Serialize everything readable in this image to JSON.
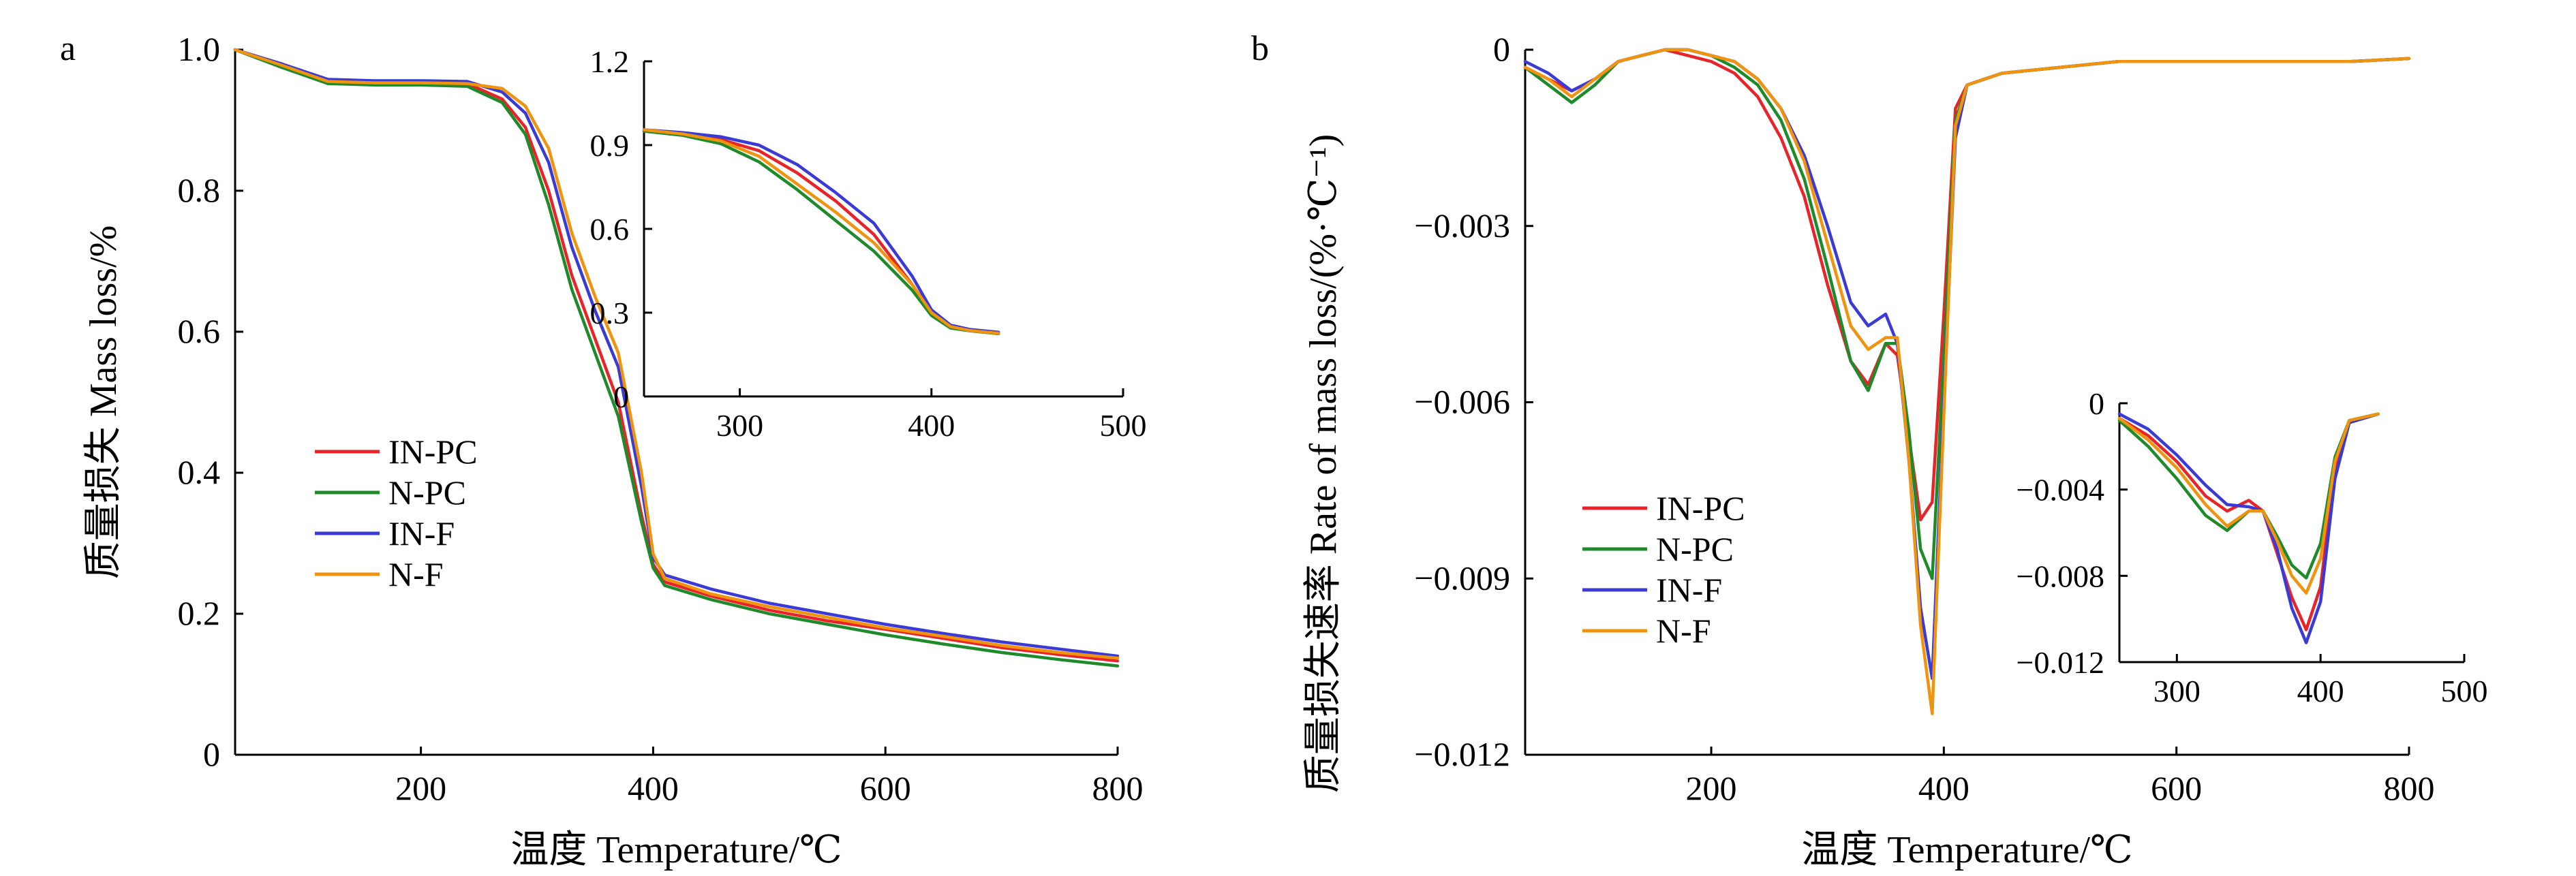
{
  "colors": {
    "IN-PC": "#e8242a",
    "N-PC": "#1f8a2a",
    "IN-F": "#3a3ad6",
    "N-F": "#f0930f"
  },
  "chart_data": [
    {
      "type": "line",
      "panel_label": "a",
      "xlabel": "温度 Temperature/℃",
      "ylabel": "质量损失 Mass loss/%",
      "xlim": [
        40,
        800
      ],
      "ylim": [
        0,
        1.0
      ],
      "xticks": [
        "200",
        "400",
        "600",
        "800"
      ],
      "yticks": [
        "0",
        "0.2",
        "0.4",
        "0.6",
        "0.8",
        "1.0"
      ],
      "legend": [
        "IN-PC",
        "N-PC",
        "IN-F",
        "N-F"
      ],
      "legend_position": "center-left",
      "series": [
        {
          "name": "IN-PC",
          "x": [
            40,
            80,
            120,
            160,
            200,
            240,
            270,
            290,
            310,
            330,
            350,
            370,
            390,
            400,
            410,
            450,
            500,
            550,
            600,
            650,
            700,
            750,
            800
          ],
          "y": [
            1.0,
            0.98,
            0.957,
            0.955,
            0.955,
            0.952,
            0.93,
            0.89,
            0.8,
            0.68,
            0.59,
            0.5,
            0.34,
            0.27,
            0.245,
            0.225,
            0.205,
            0.19,
            0.178,
            0.165,
            0.152,
            0.142,
            0.133
          ]
        },
        {
          "name": "N-PC",
          "x": [
            40,
            80,
            120,
            160,
            200,
            240,
            270,
            290,
            310,
            330,
            350,
            370,
            390,
            400,
            410,
            450,
            500,
            550,
            600,
            650,
            700,
            750,
            800
          ],
          "y": [
            1.0,
            0.975,
            0.952,
            0.95,
            0.95,
            0.948,
            0.925,
            0.88,
            0.78,
            0.66,
            0.57,
            0.48,
            0.33,
            0.265,
            0.24,
            0.22,
            0.2,
            0.185,
            0.17,
            0.157,
            0.145,
            0.135,
            0.126
          ]
        },
        {
          "name": "IN-F",
          "x": [
            40,
            80,
            120,
            160,
            200,
            240,
            270,
            290,
            310,
            330,
            350,
            370,
            390,
            400,
            410,
            450,
            500,
            550,
            600,
            650,
            700,
            750,
            800
          ],
          "y": [
            1.0,
            0.98,
            0.958,
            0.956,
            0.956,
            0.955,
            0.94,
            0.91,
            0.84,
            0.72,
            0.63,
            0.55,
            0.38,
            0.28,
            0.255,
            0.235,
            0.215,
            0.2,
            0.185,
            0.172,
            0.16,
            0.15,
            0.14
          ]
        },
        {
          "name": "N-F",
          "x": [
            40,
            80,
            120,
            160,
            200,
            240,
            270,
            290,
            310,
            330,
            350,
            370,
            390,
            400,
            410,
            450,
            500,
            550,
            600,
            650,
            700,
            750,
            800
          ],
          "y": [
            1.0,
            0.978,
            0.955,
            0.953,
            0.953,
            0.952,
            0.945,
            0.92,
            0.86,
            0.74,
            0.65,
            0.57,
            0.4,
            0.285,
            0.25,
            0.228,
            0.21,
            0.195,
            0.18,
            0.168,
            0.155,
            0.145,
            0.137
          ]
        }
      ]
    },
    {
      "type": "line",
      "role": "inset",
      "xlim": [
        250,
        500
      ],
      "ylim": [
        0,
        1.2
      ],
      "xticks": [
        "300",
        "400",
        "500"
      ],
      "yticks": [
        "0",
        "0.3",
        "0.6",
        "0.9",
        "1.2"
      ],
      "series": [
        {
          "name": "IN-PC",
          "x": [
            250,
            270,
            290,
            310,
            330,
            350,
            370,
            390,
            400,
            410,
            420,
            435
          ],
          "y": [
            0.95,
            0.94,
            0.92,
            0.88,
            0.8,
            0.7,
            0.58,
            0.4,
            0.3,
            0.25,
            0.235,
            0.225
          ]
        },
        {
          "name": "N-PC",
          "x": [
            250,
            270,
            290,
            310,
            330,
            350,
            370,
            390,
            400,
            410,
            420,
            435
          ],
          "y": [
            0.95,
            0.935,
            0.905,
            0.84,
            0.74,
            0.63,
            0.52,
            0.38,
            0.29,
            0.245,
            0.235,
            0.225
          ]
        },
        {
          "name": "IN-F",
          "x": [
            250,
            270,
            290,
            310,
            330,
            350,
            370,
            390,
            400,
            410,
            420,
            435
          ],
          "y": [
            0.955,
            0.945,
            0.93,
            0.9,
            0.83,
            0.73,
            0.62,
            0.43,
            0.31,
            0.255,
            0.24,
            0.23
          ]
        },
        {
          "name": "N-F",
          "x": [
            250,
            270,
            290,
            310,
            330,
            350,
            370,
            390,
            400,
            410,
            420,
            435
          ],
          "y": [
            0.955,
            0.94,
            0.915,
            0.86,
            0.76,
            0.66,
            0.55,
            0.4,
            0.3,
            0.25,
            0.236,
            0.226
          ]
        }
      ]
    },
    {
      "type": "line",
      "panel_label": "b",
      "xlabel": "温度 Temperature/℃",
      "ylabel": "质量损失速率 Rate of mass loss/(%·℃⁻¹)",
      "xlim": [
        40,
        800
      ],
      "ylim": [
        -0.012,
        0
      ],
      "xticks": [
        "200",
        "400",
        "600",
        "800"
      ],
      "yticks": [
        "0",
        "−0.003",
        "−0.006",
        "−0.009",
        "−0.012"
      ],
      "legend": [
        "IN-PC",
        "N-PC",
        "IN-F",
        "N-F"
      ],
      "legend_position": "bottom-left",
      "series": [
        {
          "name": "IN-PC",
          "x": [
            40,
            60,
            80,
            100,
            120,
            140,
            160,
            180,
            200,
            220,
            240,
            260,
            280,
            300,
            320,
            335,
            350,
            360,
            370,
            380,
            390,
            400,
            410,
            420,
            450,
            500,
            550,
            600,
            650,
            700,
            750,
            800
          ],
          "y": [
            -0.0003,
            -0.0005,
            -0.0007,
            -0.0005,
            -0.0002,
            -0.0001,
            0,
            -0.0001,
            -0.0002,
            -0.0004,
            -0.0008,
            -0.0015,
            -0.0025,
            -0.004,
            -0.0053,
            -0.0057,
            -0.005,
            -0.0052,
            -0.0066,
            -0.008,
            -0.0077,
            -0.0045,
            -0.001,
            -0.0006,
            -0.0004,
            -0.0003,
            -0.0002,
            -0.0002,
            -0.0002,
            -0.0002,
            -0.0002,
            -0.00015
          ]
        },
        {
          "name": "N-PC",
          "x": [
            40,
            60,
            80,
            100,
            120,
            140,
            160,
            180,
            200,
            220,
            240,
            260,
            280,
            300,
            320,
            335,
            350,
            360,
            370,
            380,
            390,
            400,
            410,
            420,
            450,
            500,
            550,
            600,
            650,
            700,
            750,
            800
          ],
          "y": [
            -0.0003,
            -0.0006,
            -0.0009,
            -0.0006,
            -0.0002,
            -0.0001,
            0,
            0,
            -0.0001,
            -0.0003,
            -0.0006,
            -0.0012,
            -0.0022,
            -0.0037,
            -0.0053,
            -0.0058,
            -0.005,
            -0.005,
            -0.0065,
            -0.0085,
            -0.009,
            -0.0052,
            -0.0012,
            -0.0006,
            -0.0004,
            -0.0003,
            -0.0002,
            -0.0002,
            -0.0002,
            -0.0002,
            -0.0002,
            -0.00015
          ]
        },
        {
          "name": "IN-F",
          "x": [
            40,
            60,
            80,
            100,
            120,
            140,
            160,
            180,
            200,
            220,
            240,
            260,
            280,
            300,
            320,
            335,
            350,
            360,
            370,
            380,
            390,
            400,
            410,
            420,
            450,
            500,
            550,
            600,
            650,
            700,
            750,
            800
          ],
          "y": [
            -0.0002,
            -0.0004,
            -0.0007,
            -0.0005,
            -0.0002,
            -0.0001,
            0,
            0,
            -0.0001,
            -0.0002,
            -0.0005,
            -0.001,
            -0.0018,
            -0.003,
            -0.0043,
            -0.0047,
            -0.0045,
            -0.005,
            -0.007,
            -0.0095,
            -0.0107,
            -0.006,
            -0.0015,
            -0.0006,
            -0.0004,
            -0.0003,
            -0.0002,
            -0.0002,
            -0.0002,
            -0.0002,
            -0.0002,
            -0.00015
          ]
        },
        {
          "name": "N-F",
          "x": [
            40,
            60,
            80,
            100,
            120,
            140,
            160,
            180,
            200,
            220,
            240,
            260,
            280,
            300,
            320,
            335,
            350,
            360,
            370,
            380,
            390,
            400,
            410,
            420,
            450,
            500,
            550,
            600,
            650,
            700,
            750,
            800
          ],
          "y": [
            -0.0003,
            -0.0005,
            -0.0008,
            -0.0005,
            -0.0002,
            -0.0001,
            0,
            0,
            -0.0001,
            -0.0002,
            -0.0005,
            -0.001,
            -0.0019,
            -0.0033,
            -0.0047,
            -0.0051,
            -0.0049,
            -0.0049,
            -0.007,
            -0.0098,
            -0.0113,
            -0.0062,
            -0.0013,
            -0.0006,
            -0.0004,
            -0.0003,
            -0.0002,
            -0.0002,
            -0.0002,
            -0.0002,
            -0.0002,
            -0.00015
          ]
        }
      ]
    },
    {
      "type": "line",
      "role": "inset",
      "xlim": [
        260,
        500
      ],
      "ylim": [
        -0.012,
        0
      ],
      "xticks": [
        "300",
        "400",
        "500"
      ],
      "yticks": [
        "0",
        "−0.004",
        "−0.008",
        "−0.012"
      ],
      "series": [
        {
          "name": "IN-PC",
          "x": [
            260,
            280,
            300,
            320,
            335,
            350,
            360,
            370,
            380,
            390,
            400,
            410,
            420,
            440
          ],
          "y": [
            -0.0007,
            -0.0015,
            -0.0027,
            -0.0043,
            -0.005,
            -0.0045,
            -0.005,
            -0.007,
            -0.009,
            -0.0105,
            -0.0085,
            -0.003,
            -0.0008,
            -0.0005
          ]
        },
        {
          "name": "N-PC",
          "x": [
            260,
            280,
            300,
            320,
            335,
            350,
            360,
            370,
            380,
            390,
            400,
            410,
            420,
            440
          ],
          "y": [
            -0.0008,
            -0.002,
            -0.0035,
            -0.0052,
            -0.0059,
            -0.005,
            -0.005,
            -0.0062,
            -0.0075,
            -0.0081,
            -0.0065,
            -0.0025,
            -0.0008,
            -0.0005
          ]
        },
        {
          "name": "IN-F",
          "x": [
            260,
            280,
            300,
            320,
            335,
            350,
            360,
            370,
            380,
            390,
            400,
            410,
            420,
            440
          ],
          "y": [
            -0.0005,
            -0.0012,
            -0.0024,
            -0.0038,
            -0.0047,
            -0.0048,
            -0.005,
            -0.0068,
            -0.0095,
            -0.0111,
            -0.0092,
            -0.0035,
            -0.0009,
            -0.0005
          ]
        },
        {
          "name": "N-F",
          "x": [
            260,
            280,
            300,
            320,
            335,
            350,
            360,
            370,
            380,
            390,
            400,
            410,
            420,
            440
          ],
          "y": [
            -0.0007,
            -0.0017,
            -0.003,
            -0.0047,
            -0.0057,
            -0.005,
            -0.005,
            -0.0064,
            -0.008,
            -0.0088,
            -0.0072,
            -0.0027,
            -0.0008,
            -0.0005
          ]
        }
      ]
    }
  ]
}
